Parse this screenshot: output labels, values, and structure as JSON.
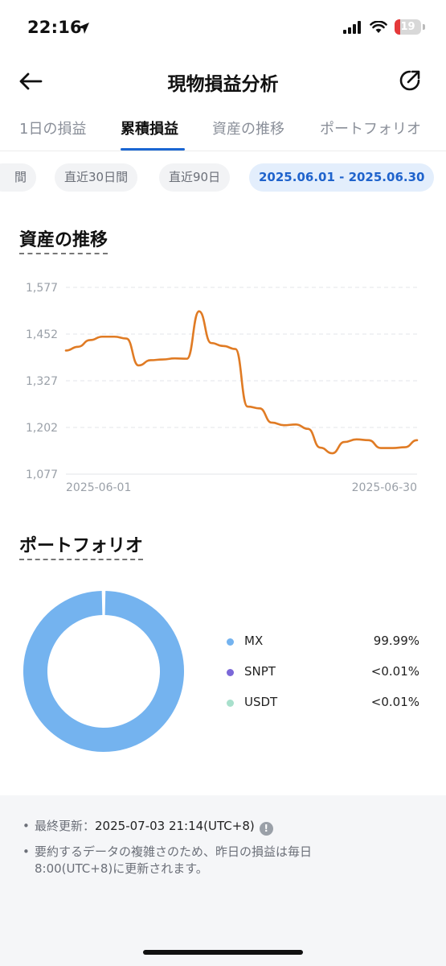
{
  "status_bar": {
    "time": "22:16",
    "battery": "19"
  },
  "header": {
    "title": "現物損益分析"
  },
  "tabs": [
    {
      "label": "1日の損益",
      "active": false
    },
    {
      "label": "累積損益",
      "active": true
    },
    {
      "label": "資産の推移",
      "active": false
    },
    {
      "label": "ポートフォリオ",
      "active": false
    }
  ],
  "chips": [
    {
      "label": "間",
      "active": false
    },
    {
      "label": "直近30日間",
      "active": false
    },
    {
      "label": "直近90日",
      "active": false
    },
    {
      "label": "2025.06.01 - 2025.06.30",
      "active": true
    }
  ],
  "asset_section": {
    "title": "資産の推移"
  },
  "portfolio_section": {
    "title": "ポートフォリオ"
  },
  "chart_data": {
    "type": "line",
    "title": "",
    "xlabel": "",
    "ylabel": "",
    "x_tick_labels": [
      "2025-06-01",
      "2025-06-30"
    ],
    "y_tick_labels": [
      "1,577",
      "1,452",
      "1,327",
      "1,202",
      "1,077"
    ],
    "ylim": [
      1077,
      1577
    ],
    "grid": true,
    "line_color": "#e07b24",
    "series": [
      {
        "values": [
          1408,
          1418,
          1436,
          1445,
          1445,
          1440,
          1368,
          1382,
          1384,
          1387,
          1386,
          1513,
          1428,
          1420,
          1412,
          1258,
          1253,
          1215,
          1208,
          1210,
          1198,
          1148,
          1133,
          1163,
          1170,
          1168,
          1147,
          1147,
          1149,
          1168
        ]
      }
    ]
  },
  "portfolio": {
    "items": [
      {
        "name": "MX",
        "value": "99.99%",
        "color": "#74b3ef"
      },
      {
        "name": "SNPT",
        "value": "<0.01%",
        "color": "#7b68d8"
      },
      {
        "name": "USDT",
        "value": "<0.01%",
        "color": "#a8e0cc"
      }
    ],
    "shares": [
      99.99,
      0.005,
      0.005
    ]
  },
  "footer": {
    "last_update_label": "最終更新：",
    "last_update_value": "2025-07-03 21:14(UTC+8)",
    "info_icon": "!",
    "note_line1": "要約するデータの複雑さのため、昨日の損益は毎日",
    "note_line2": "8:00(UTC+8)に更新されます。"
  }
}
